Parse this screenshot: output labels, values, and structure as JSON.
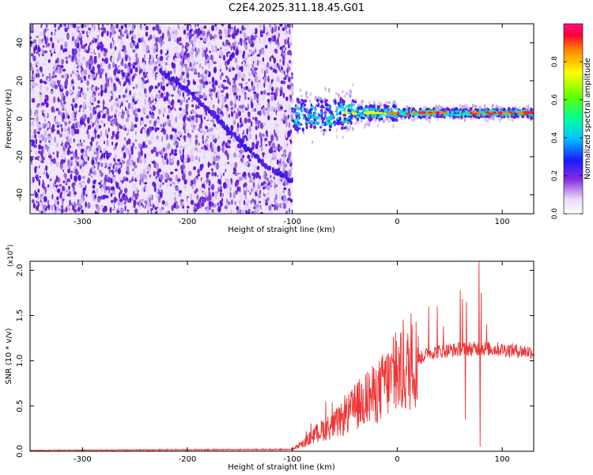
{
  "title": "C2E4.2025.311.18.45.G01",
  "chart_data": [
    {
      "type": "heatmap",
      "name": "spectrogram",
      "xlabel": "Height of straight line (km)",
      "ylabel": "Frequency (Hz)",
      "xlim": [
        -350,
        130
      ],
      "ylim": [
        -50,
        50
      ],
      "xticks": [
        -300,
        -200,
        -100,
        0,
        100
      ],
      "yticks": [
        -40,
        -20,
        0,
        20,
        40
      ],
      "xtick_labels": [
        "-300",
        "-200",
        "-100",
        "0",
        "100"
      ],
      "ytick_labels": [
        "-40",
        "-20",
        "0",
        "20",
        "40"
      ],
      "noise_region_x": [
        -350,
        -100
      ],
      "signal_region_x": [
        -100,
        130
      ],
      "signal_center_hz": 3,
      "chirp_track": [
        [
          -225,
          25
        ],
        [
          -200,
          15
        ],
        [
          -175,
          2
        ],
        [
          -150,
          -12
        ],
        [
          -125,
          -25
        ],
        [
          -100,
          -33
        ]
      ],
      "colorbar": {
        "label": "Normalized spectral amplitude",
        "range": [
          0,
          1
        ],
        "ticks": [
          0,
          0.2,
          0.4,
          0.6,
          0.8
        ],
        "tick_labels": [
          "0.0",
          "0.2",
          "0.4",
          "0.6",
          "0.8"
        ]
      }
    },
    {
      "type": "line",
      "name": "snr",
      "xlabel": "Height of straight line (km)",
      "ylabel": "SNR (10 * v/v)",
      "y_scale_label": "(x10",
      "y_scale_exp": "4",
      "y_scale_close": ")",
      "xlim": [
        -350,
        130
      ],
      "ylim": [
        0,
        2.1
      ],
      "xticks": [
        -300,
        -200,
        -100,
        0,
        100
      ],
      "yticks": [
        0,
        0.5,
        1,
        1.5,
        2
      ],
      "xtick_labels": [
        "-300",
        "-200",
        "-100",
        "0",
        "100"
      ],
      "ytick_labels": [
        "0.0",
        "0.5",
        "1.0",
        "1.5",
        "2.0"
      ],
      "color": "#ee3333",
      "envelope": [
        [
          -350,
          0.01
        ],
        [
          -100,
          0.02
        ],
        [
          -90,
          0.08
        ],
        [
          -80,
          0.18
        ],
        [
          -70,
          0.25
        ],
        [
          -60,
          0.3
        ],
        [
          -50,
          0.38
        ],
        [
          -40,
          0.5
        ],
        [
          -30,
          0.6
        ],
        [
          -20,
          0.65
        ],
        [
          -10,
          0.78
        ],
        [
          0,
          0.85
        ],
        [
          10,
          0.92
        ],
        [
          20,
          1.05
        ],
        [
          30,
          1.12
        ],
        [
          40,
          1.14
        ],
        [
          60,
          1.16
        ],
        [
          80,
          1.17
        ],
        [
          100,
          1.16
        ],
        [
          120,
          1.14
        ],
        [
          130,
          1.13
        ]
      ],
      "spikes": [
        [
          -68,
          0.55
        ],
        [
          -50,
          0.62
        ],
        [
          -30,
          0.85
        ],
        [
          -13,
          0.82
        ],
        [
          -12,
          1.0
        ],
        [
          0,
          0.95
        ],
        [
          20,
          1.28
        ],
        [
          30,
          1.6
        ],
        [
          38,
          1.6
        ],
        [
          44,
          1.38
        ],
        [
          60,
          1.78
        ],
        [
          62,
          1.68
        ],
        [
          65,
          0.35
        ],
        [
          66,
          1.65
        ],
        [
          78,
          2.1
        ],
        [
          79,
          0.05
        ],
        [
          80,
          1.75
        ],
        [
          85,
          1.4
        ]
      ]
    }
  ]
}
